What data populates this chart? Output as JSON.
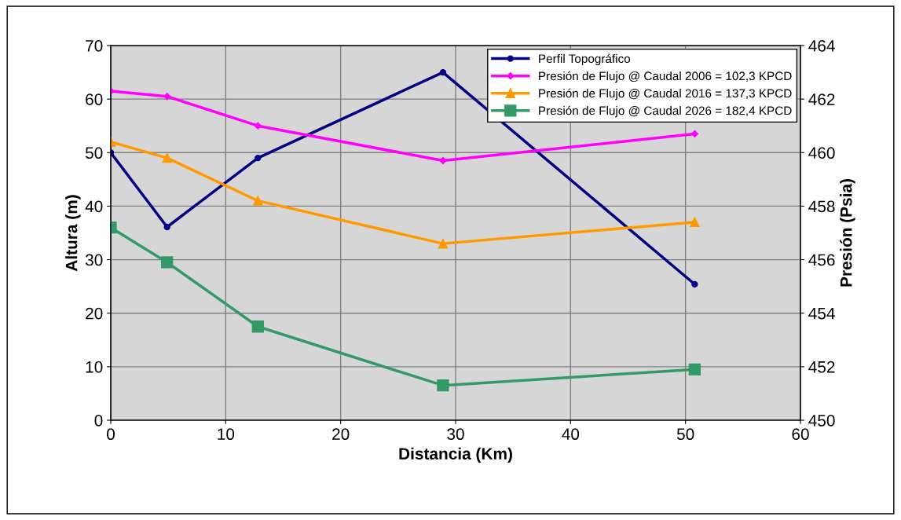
{
  "chart_data": {
    "type": "line",
    "xlabel": "Distancia (Km)",
    "ylabel": "Altura (m)",
    "y2label": "Presión (Psia)",
    "xlim": [
      0,
      60
    ],
    "xticks": [
      0,
      10,
      20,
      30,
      40,
      50,
      60
    ],
    "ylim": [
      0,
      70
    ],
    "yticks": [
      0,
      10,
      20,
      30,
      40,
      50,
      60,
      70
    ],
    "y2lim": [
      450,
      464
    ],
    "y2ticks": [
      450,
      452,
      454,
      456,
      458,
      460,
      462,
      464
    ],
    "grid": true,
    "legend": "top right",
    "series": [
      {
        "name": "Perfil Topográfico",
        "color": "#000080",
        "marker": "circle",
        "x": [
          0,
          4.9,
          12.8,
          28.9,
          50.8
        ],
        "values": [
          50.0,
          36.1,
          49.0,
          65.0,
          25.4
        ]
      },
      {
        "name": "Presión de Flujo @ Caudal 2006 = 102,3 KPCD",
        "color": "#ff00ff",
        "marker": "diamond",
        "axis": "y2",
        "x": [
          0,
          4.9,
          12.8,
          28.9,
          50.8
        ],
        "values": [
          462.3,
          462.1,
          461.0,
          459.7,
          460.7
        ]
      },
      {
        "name": "Presión de Flujo @ Caudal 2016 = 137,3 KPCD",
        "color": "#ff9900",
        "marker": "triangle",
        "axis": "y2",
        "x": [
          0,
          4.9,
          12.8,
          28.9,
          50.8
        ],
        "values": [
          460.4,
          459.8,
          458.2,
          456.6,
          457.4
        ]
      },
      {
        "name": "Presión de Flujo @ Caudal 2026 = 182,4 KPCD",
        "color": "#339966",
        "marker": "square",
        "axis": "y2",
        "x": [
          0,
          4.9,
          12.8,
          28.9,
          50.8
        ],
        "values": [
          457.2,
          455.9,
          453.5,
          451.3,
          451.9
        ]
      }
    ]
  }
}
